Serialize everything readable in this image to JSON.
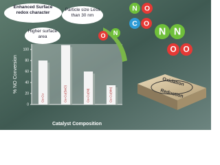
{
  "chart_data": {
    "type": "bar",
    "x_label": "Catalyst Composition",
    "y_label": "% NO Conversion",
    "categories": [
      "Ce-Cu",
      "Ce-Cu(SnO)",
      "Ce-Cu(Ni)",
      "Ce-Cu(Mn)"
    ],
    "values": [
      80,
      108,
      60,
      35
    ],
    "color": "#f4f4f4",
    "ylim": [
      0,
      110
    ],
    "yticks": [
      0,
      20,
      40,
      60,
      80,
      100
    ],
    "annotations": [
      "Enhanced Surface redox character",
      "Particle size Less than 30 nm",
      "Higher surface area",
      "Oxidation",
      "Reduction"
    ],
    "atoms": [
      "N",
      "O",
      "C",
      "O",
      "N",
      "O",
      "N",
      "N",
      "O",
      "O"
    ]
  }
}
